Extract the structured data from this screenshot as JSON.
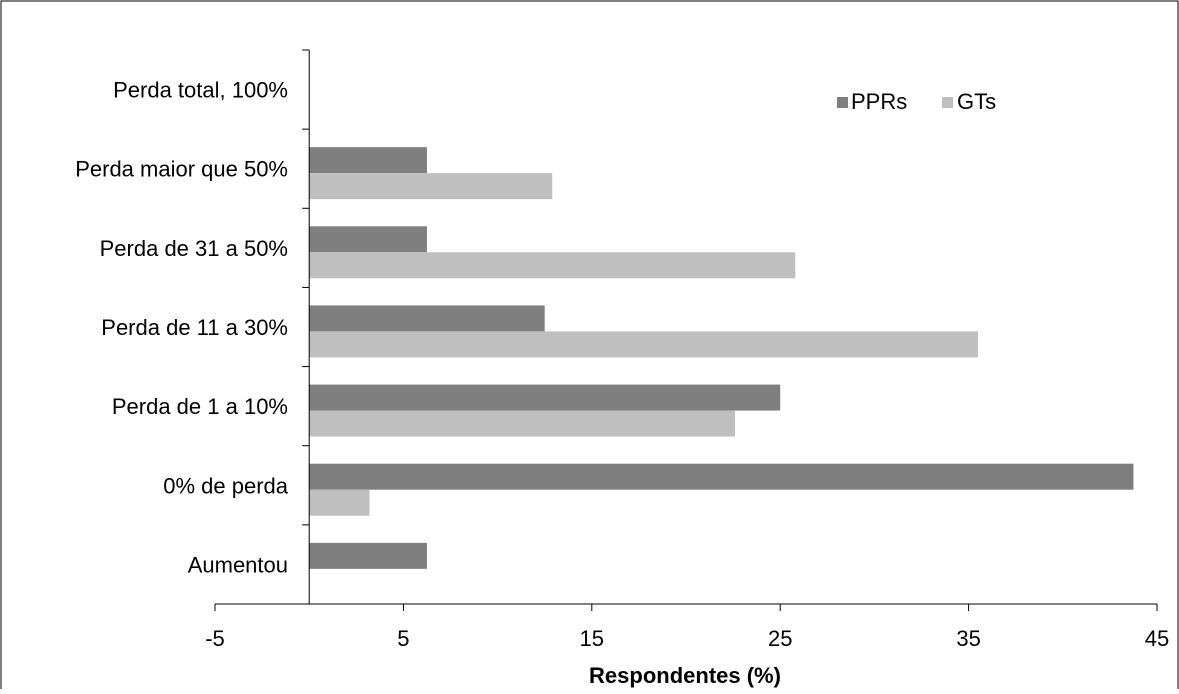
{
  "chart_data": {
    "type": "bar",
    "orientation": "horizontal",
    "categories": [
      "Perda total, 100%",
      "Perda maior que 50%",
      "Perda de 31 a 50%",
      "Perda de 11 a 30%",
      "Perda de 1 a 10%",
      "0% de perda",
      "Aumentou"
    ],
    "series": [
      {
        "name": "PPRs",
        "color": "#7f7f7f",
        "values": [
          0,
          6.25,
          6.25,
          12.5,
          25,
          43.75,
          6.25
        ]
      },
      {
        "name": "GTs",
        "color": "#bfbfbf",
        "values": [
          0,
          12.9,
          25.8,
          35.5,
          22.6,
          3.2,
          0
        ]
      }
    ],
    "xlabel": "Respondentes (%)",
    "ylabel": "",
    "title": "",
    "xlim": [
      -5,
      45
    ],
    "xticks": [
      -5,
      5,
      15,
      25,
      35,
      45
    ],
    "xtick_labels": [
      "-5",
      "5",
      "15",
      "25",
      "35",
      "45"
    ],
    "grid": false,
    "legend_position": "top-right"
  }
}
